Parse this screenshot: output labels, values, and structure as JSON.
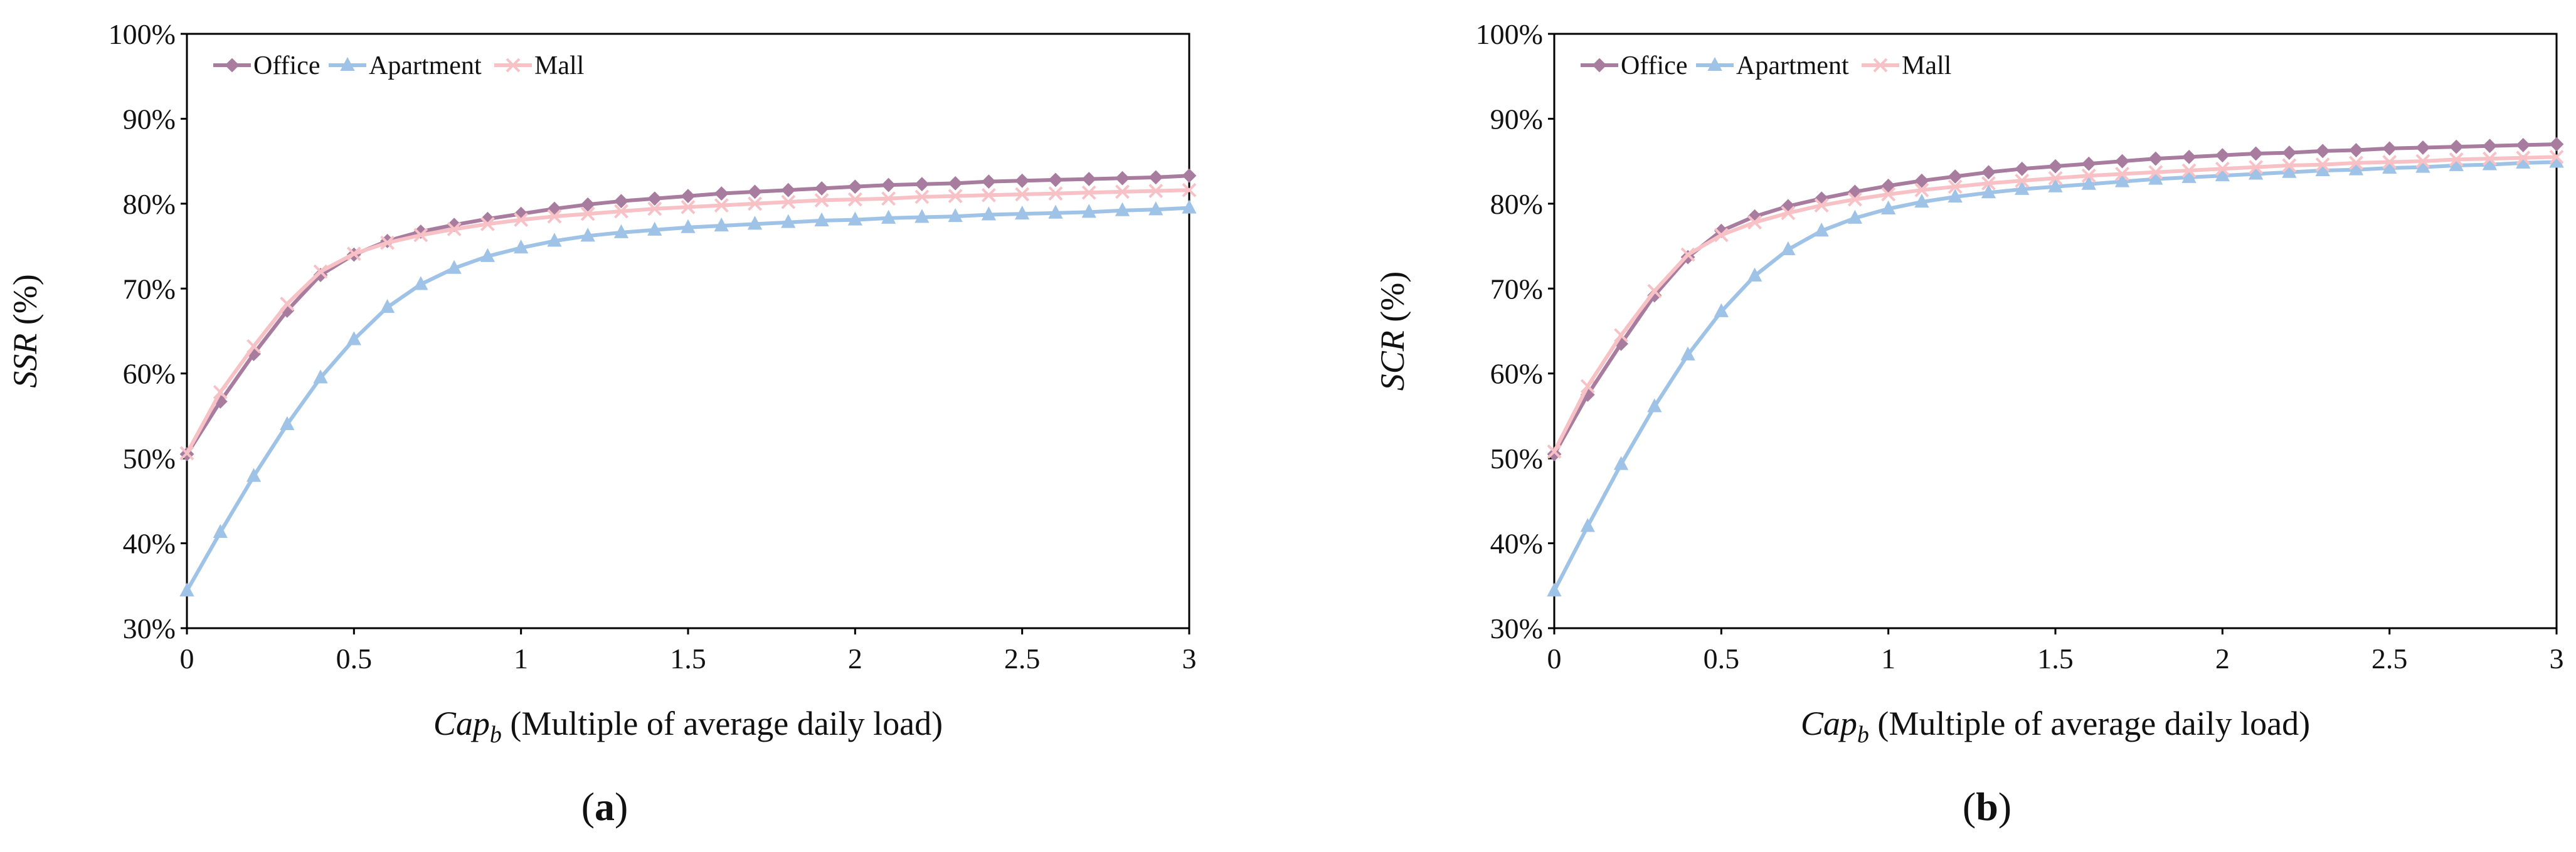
{
  "figure": {
    "panels": [
      {
        "label_open": "(",
        "label_letter": "a",
        "label_close": ")"
      },
      {
        "label_open": "(",
        "label_letter": "b",
        "label_close": ")"
      }
    ]
  },
  "colors": {
    "Office": "#a77c9e",
    "Apartment": "#9fc3e6",
    "Mall": "#f7c1c6"
  },
  "chart_data": [
    {
      "type": "line",
      "title": "",
      "xlabel_italic": "Cap",
      "xlabel_sub": "b",
      "xlabel_rest": " (Multiple of average daily load)",
      "ylabel_italic": "SSR",
      "ylabel_rest": " (%)",
      "xlim": [
        0,
        3
      ],
      "ylim": [
        30,
        100
      ],
      "x_ticks": [
        "0",
        "0.5",
        "1",
        "1.5",
        "2",
        "2.5",
        "3"
      ],
      "y_ticks": [
        "30%",
        "40%",
        "50%",
        "60%",
        "70%",
        "80%",
        "90%",
        "100%"
      ],
      "legend": [
        "Office",
        "Apartment",
        "Mall"
      ],
      "legend_position": "top-left",
      "x": [
        0,
        0.1,
        0.2,
        0.3,
        0.4,
        0.5,
        0.6,
        0.7,
        0.8,
        0.9,
        1.0,
        1.1,
        1.2,
        1.3,
        1.4,
        1.5,
        1.6,
        1.7,
        1.8,
        1.9,
        2.0,
        2.1,
        2.2,
        2.3,
        2.4,
        2.5,
        2.6,
        2.7,
        2.8,
        2.9,
        3.0
      ],
      "series": [
        {
          "name": "Office",
          "marker": "diamond",
          "values": [
            50.5,
            56.7,
            62.3,
            67.4,
            71.6,
            74.0,
            75.6,
            76.7,
            77.5,
            78.2,
            78.8,
            79.4,
            79.9,
            80.3,
            80.6,
            80.9,
            81.2,
            81.4,
            81.6,
            81.8,
            82.0,
            82.2,
            82.3,
            82.4,
            82.6,
            82.7,
            82.8,
            82.9,
            83.0,
            83.1,
            83.3
          ]
        },
        {
          "name": "Apartment",
          "marker": "triangle",
          "values": [
            34.4,
            41.3,
            47.9,
            54.0,
            59.5,
            64.0,
            67.8,
            70.5,
            72.4,
            73.8,
            74.8,
            75.6,
            76.2,
            76.6,
            76.9,
            77.2,
            77.4,
            77.6,
            77.8,
            78.0,
            78.1,
            78.3,
            78.4,
            78.5,
            78.7,
            78.8,
            78.9,
            79.0,
            79.2,
            79.3,
            79.5
          ]
        },
        {
          "name": "Mall",
          "marker": "x",
          "values": [
            50.6,
            57.8,
            63.2,
            68.2,
            72.0,
            74.1,
            75.4,
            76.3,
            77.0,
            77.6,
            78.1,
            78.5,
            78.8,
            79.1,
            79.4,
            79.6,
            79.8,
            80.0,
            80.2,
            80.4,
            80.5,
            80.6,
            80.8,
            80.9,
            81.0,
            81.1,
            81.2,
            81.3,
            81.4,
            81.5,
            81.6
          ]
        }
      ]
    },
    {
      "type": "line",
      "title": "",
      "xlabel_italic": "Cap",
      "xlabel_sub": "b",
      "xlabel_rest": " (Multiple of average daily load)",
      "ylabel_italic": "SCR",
      "ylabel_rest": " (%)",
      "xlim": [
        0,
        3
      ],
      "ylim": [
        30,
        100
      ],
      "x_ticks": [
        "0",
        "0.5",
        "1",
        "1.5",
        "2",
        "2.5",
        "3"
      ],
      "y_ticks": [
        "30%",
        "40%",
        "50%",
        "60%",
        "70%",
        "80%",
        "90%",
        "100%"
      ],
      "legend": [
        "Office",
        "Apartment",
        "Mall"
      ],
      "legend_position": "top-left",
      "x": [
        0,
        0.1,
        0.2,
        0.3,
        0.4,
        0.5,
        0.6,
        0.7,
        0.8,
        0.9,
        1.0,
        1.1,
        1.2,
        1.3,
        1.4,
        1.5,
        1.6,
        1.7,
        1.8,
        1.9,
        2.0,
        2.1,
        2.2,
        2.3,
        2.4,
        2.5,
        2.6,
        2.7,
        2.8,
        2.9,
        3.0
      ],
      "series": [
        {
          "name": "Office",
          "marker": "diamond",
          "values": [
            50.5,
            57.5,
            63.5,
            69.2,
            73.7,
            76.8,
            78.5,
            79.7,
            80.6,
            81.4,
            82.1,
            82.7,
            83.2,
            83.7,
            84.1,
            84.4,
            84.7,
            85.0,
            85.3,
            85.5,
            85.7,
            85.9,
            86.0,
            86.2,
            86.3,
            86.5,
            86.6,
            86.7,
            86.8,
            86.9,
            87.0
          ]
        },
        {
          "name": "Apartment",
          "marker": "triangle",
          "values": [
            34.4,
            42.0,
            49.3,
            56.1,
            62.2,
            67.3,
            71.5,
            74.6,
            76.8,
            78.3,
            79.4,
            80.2,
            80.8,
            81.3,
            81.7,
            82.0,
            82.3,
            82.6,
            82.9,
            83.1,
            83.3,
            83.5,
            83.7,
            83.9,
            84.0,
            84.2,
            84.3,
            84.5,
            84.6,
            84.8,
            84.9
          ]
        },
        {
          "name": "Mall",
          "marker": "x",
          "values": [
            50.8,
            58.5,
            64.5,
            69.7,
            74.0,
            76.3,
            77.8,
            78.9,
            79.8,
            80.5,
            81.1,
            81.6,
            82.0,
            82.4,
            82.7,
            83.0,
            83.3,
            83.5,
            83.7,
            83.9,
            84.1,
            84.3,
            84.5,
            84.6,
            84.8,
            84.9,
            85.0,
            85.2,
            85.3,
            85.4,
            85.5
          ]
        }
      ]
    }
  ]
}
